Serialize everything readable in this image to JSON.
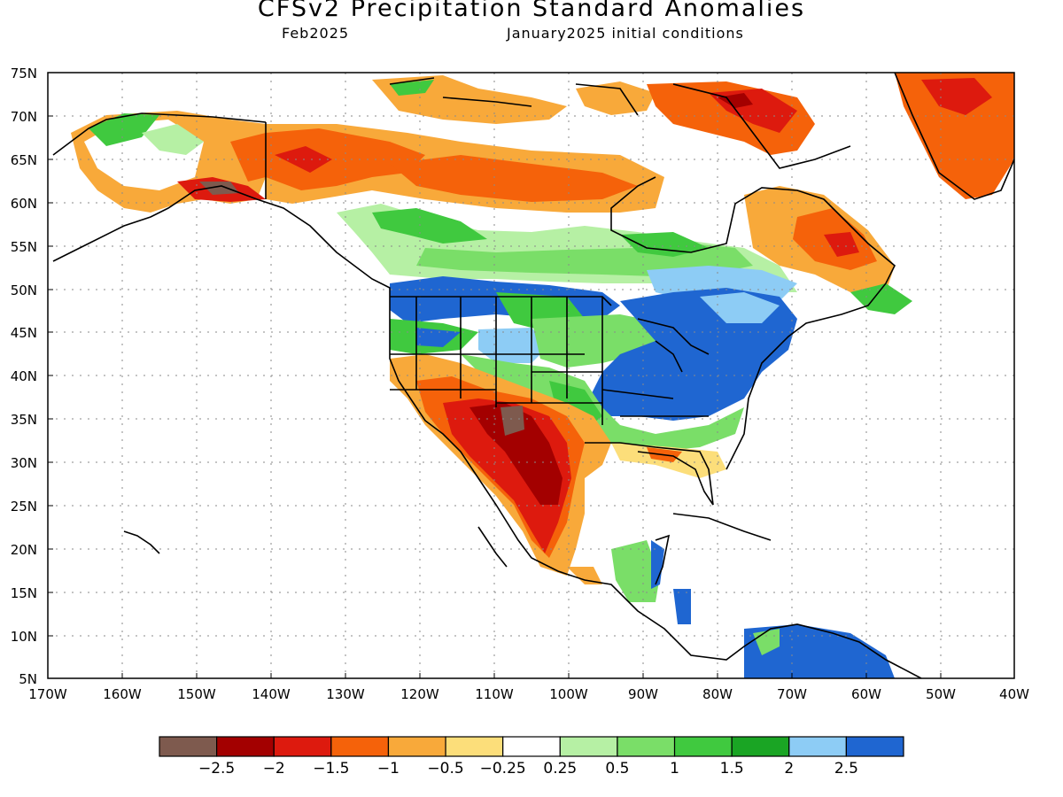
{
  "header": {
    "title": "CFSv2 Precipitation Standard Anomalies",
    "valid": "Feb2025",
    "init": "January2025 initial conditions"
  },
  "axes": {
    "lat_labels": [
      "75N",
      "70N",
      "65N",
      "60N",
      "55N",
      "50N",
      "45N",
      "40N",
      "35N",
      "30N",
      "25N",
      "20N",
      "15N",
      "10N",
      "5N"
    ],
    "lon_labels": [
      "170W",
      "160W",
      "150W",
      "140W",
      "130W",
      "120W",
      "110W",
      "100W",
      "90W",
      "80W",
      "70W",
      "60W",
      "50W",
      "40W"
    ]
  },
  "colorbar": {
    "colors": [
      "#7e5a4e",
      "#a30000",
      "#dd1a0e",
      "#f5620a",
      "#f8a93a",
      "#fcde7a",
      "#ffffff",
      "#b6f0a4",
      "#7ade68",
      "#40c93f",
      "#1aa524",
      "#8dccf5",
      "#1f66d1"
    ],
    "labels": [
      "−2.5",
      "−2",
      "−1.5",
      "−1",
      "−0.5",
      "−0.25",
      "0.25",
      "0.5",
      "1",
      "1.5",
      "2",
      "2.5"
    ]
  },
  "legend_colors": {
    "brown": "#7e5a4e",
    "dark_red": "#a30000",
    "red": "#dd1a0e",
    "orange": "#f5620a",
    "light_orange": "#f8a93a",
    "yellow": "#fcde7a",
    "light_green": "#b6f0a4",
    "green": "#7ade68",
    "mid_green": "#40c93f",
    "dark_green": "#1aa524",
    "light_blue": "#8dccf5",
    "blue": "#1f66d1"
  }
}
